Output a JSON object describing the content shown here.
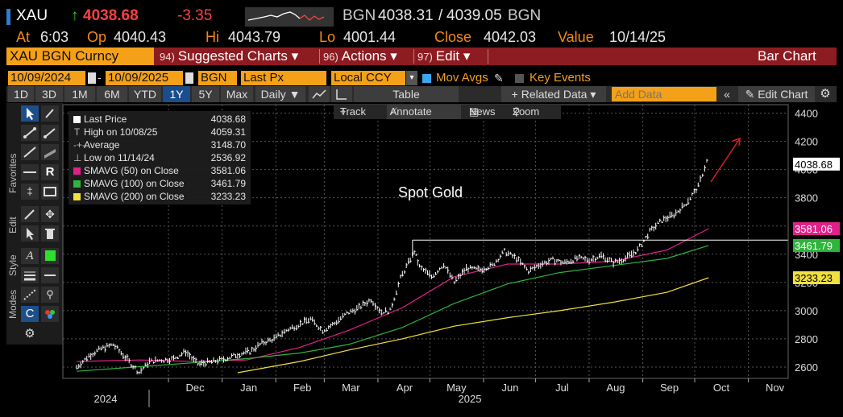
{
  "quote": {
    "ticker": "XAU",
    "last": "4038.68",
    "arrow": "↑",
    "change": "-3.35",
    "source_left": "BGN",
    "bid": "4038.31",
    "ask": "4039.05",
    "source_right": "BGN",
    "at_label": "At",
    "at_value": "6:03",
    "op_label": "Op",
    "op_value": "4040.43",
    "hi_label": "Hi",
    "hi_value": "4043.79",
    "lo_label": "Lo",
    "lo_value": "4001.44",
    "close_label": "Close",
    "close_value": "4042.03",
    "value_label": "Value",
    "value_value": "10/14/25"
  },
  "menubar": {
    "security": "XAU BGN Curncy",
    "items": [
      {
        "num": "94)",
        "label": "Suggested Charts ▾"
      },
      {
        "num": "96)",
        "label": "Actions ▾"
      },
      {
        "num": "97)",
        "label": "Edit ▾"
      }
    ],
    "chart_type": "Bar Chart"
  },
  "controls": {
    "start_date": "10/09/2024",
    "end_date": "10/09/2025",
    "source": "BGN",
    "field": "Last Px",
    "currency": "Local CCY",
    "mov_avgs": "Mov Avgs",
    "key_events": "Key Events"
  },
  "toolbar": {
    "periods": [
      "1D",
      "3D",
      "1M",
      "6M",
      "YTD",
      "1Y",
      "5Y",
      "Max"
    ],
    "active_period": "1Y",
    "frequency": "Daily ▼",
    "table": "Table",
    "related": "+ Related Data ▾",
    "add_data_placeholder": "Add Data",
    "edit_chart": "Edit Chart"
  },
  "trackbar": {
    "track": "Track",
    "annotate": "Annotate",
    "news": "News",
    "zoom": "Zoom"
  },
  "side_labels": {
    "favorites": "Favorites",
    "edit": "Edit",
    "style": "Style",
    "modes": "Modes"
  },
  "legend": [
    {
      "label": "Last Price",
      "value": "4038.68",
      "color": "#ffffff",
      "kind": "swatch"
    },
    {
      "label": "High on 10/08/25",
      "value": "4059.31",
      "kind": "icon",
      "icon": "T"
    },
    {
      "label": "Average",
      "value": "3148.70",
      "kind": "icon",
      "icon": "-+-"
    },
    {
      "label": "Low on 11/14/24",
      "value": "2536.92",
      "kind": "icon",
      "icon": "⊥"
    },
    {
      "label": "SMAVG (50)  on Close",
      "value": "3581.06",
      "color": "#e0218a",
      "kind": "swatch"
    },
    {
      "label": "SMAVG (100)  on Close",
      "value": "3461.79",
      "color": "#2db53c",
      "kind": "swatch"
    },
    {
      "label": "SMAVG (200)  on Close",
      "value": "3233.23",
      "color": "#f0e040",
      "kind": "swatch"
    }
  ],
  "chart_data": {
    "type": "line",
    "annotation": "Spot Gold",
    "x_months": [
      "Dec",
      "Jan",
      "Feb",
      "Mar",
      "Apr",
      "May",
      "Jun",
      "Jul",
      "Aug",
      "Sep",
      "Oct",
      "Nov"
    ],
    "x_years": [
      "2024",
      "2025"
    ],
    "y_ticks": [
      2600,
      2800,
      3000,
      3200,
      3400,
      3600,
      3800,
      4000,
      4200,
      4400
    ],
    "ylim": [
      2520,
      4460
    ],
    "grid": true,
    "price_series": {
      "name": "Last Price",
      "color": "#ffffff",
      "dates": [
        "2024-10-09",
        "2024-10-16",
        "2024-10-23",
        "2024-10-30",
        "2024-11-06",
        "2024-11-14",
        "2024-11-20",
        "2024-11-27",
        "2024-12-04",
        "2024-12-11",
        "2024-12-18",
        "2024-12-27",
        "2025-01-03",
        "2025-01-10",
        "2025-01-17",
        "2025-01-24",
        "2025-01-31",
        "2025-02-07",
        "2025-02-14",
        "2025-02-21",
        "2025-02-28",
        "2025-03-07",
        "2025-03-14",
        "2025-03-21",
        "2025-03-28",
        "2025-04-03",
        "2025-04-08",
        "2025-04-14",
        "2025-04-22",
        "2025-04-25",
        "2025-05-02",
        "2025-05-09",
        "2025-05-15",
        "2025-05-22",
        "2025-05-30",
        "2025-06-06",
        "2025-06-13",
        "2025-06-20",
        "2025-06-27",
        "2025-07-04",
        "2025-07-11",
        "2025-07-18",
        "2025-07-25",
        "2025-08-01",
        "2025-08-08",
        "2025-08-15",
        "2025-08-22",
        "2025-08-29",
        "2025-09-05",
        "2025-09-12",
        "2025-09-19",
        "2025-09-26",
        "2025-10-03",
        "2025-10-08",
        "2025-10-09"
      ],
      "values": [
        2600,
        2680,
        2730,
        2760,
        2670,
        2560,
        2640,
        2650,
        2660,
        2710,
        2620,
        2640,
        2660,
        2690,
        2710,
        2770,
        2800,
        2860,
        2900,
        2940,
        2860,
        2910,
        2980,
        3020,
        3080,
        2990,
        3000,
        3230,
        3420,
        3310,
        3240,
        3330,
        3200,
        3300,
        3290,
        3320,
        3420,
        3370,
        3280,
        3330,
        3360,
        3340,
        3370,
        3360,
        3390,
        3340,
        3370,
        3430,
        3560,
        3640,
        3680,
        3760,
        3880,
        4059,
        4038
      ]
    },
    "moving_averages": [
      {
        "name": "SMAVG (50)  on Close",
        "color": "#e0218a",
        "dates": [
          "2024-10-09",
          "2024-11-15",
          "2024-12-15",
          "2025-01-15",
          "2025-02-15",
          "2025-03-15",
          "2025-04-15",
          "2025-05-15",
          "2025-06-15",
          "2025-07-15",
          "2025-08-15",
          "2025-09-15",
          "2025-10-09"
        ],
        "values": [
          2640,
          2650,
          2640,
          2650,
          2740,
          2860,
          3020,
          3240,
          3330,
          3330,
          3350,
          3430,
          3581
        ]
      },
      {
        "name": "SMAVG (100)  on Close",
        "color": "#2db53c",
        "dates": [
          "2024-10-09",
          "2024-12-15",
          "2025-01-15",
          "2025-02-15",
          "2025-03-15",
          "2025-04-15",
          "2025-05-15",
          "2025-06-15",
          "2025-07-15",
          "2025-08-15",
          "2025-09-15",
          "2025-10-09"
        ],
        "values": [
          2570,
          2630,
          2660,
          2700,
          2760,
          2880,
          3050,
          3190,
          3270,
          3320,
          3370,
          3462
        ]
      },
      {
        "name": "SMAVG (200)  on Close",
        "color": "#f0e040",
        "dates": [
          "2025-01-10",
          "2025-02-15",
          "2025-03-15",
          "2025-04-15",
          "2025-05-15",
          "2025-06-15",
          "2025-07-15",
          "2025-08-15",
          "2025-09-15",
          "2025-10-09"
        ],
        "values": [
          2560,
          2640,
          2720,
          2800,
          2890,
          2950,
          3000,
          3060,
          3130,
          3233
        ]
      }
    ],
    "reference_line": {
      "value": 3500,
      "from": "2025-04-21"
    },
    "right_labels": [
      {
        "value": "4038.68",
        "y": 4038.68,
        "bg": "#ffffff",
        "fg": "#000000"
      },
      {
        "value": "3581.06",
        "y": 3581.06,
        "bg": "#e0218a",
        "fg": "#ffffff"
      },
      {
        "value": "3461.79",
        "y": 3461.79,
        "bg": "#2db53c",
        "fg": "#ffffff"
      },
      {
        "value": "3233.23",
        "y": 3233.23,
        "bg": "#f0e040",
        "fg": "#000000"
      }
    ]
  }
}
